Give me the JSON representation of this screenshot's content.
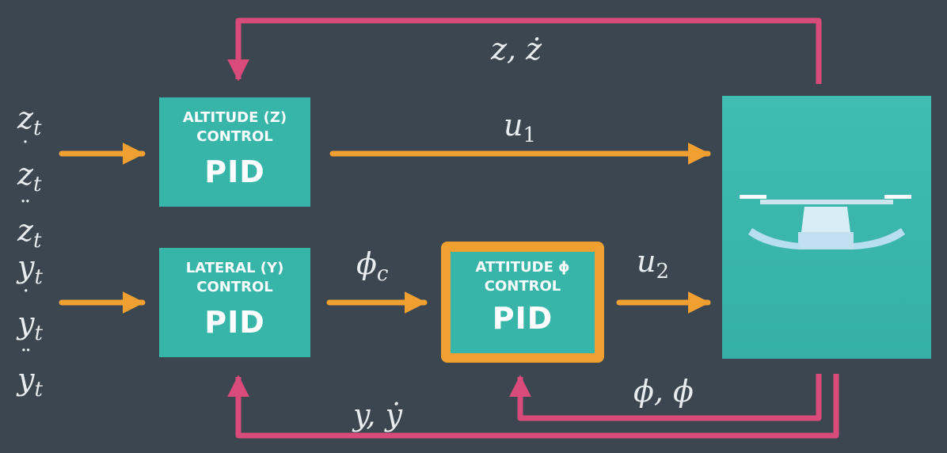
{
  "blocks": {
    "altitude": {
      "title": "ALTITUDE (Z)\nCONTROL",
      "pid": "PID"
    },
    "lateral": {
      "title": "LATERAL (Y)\nCONTROL",
      "pid": "PID"
    },
    "attitude": {
      "title": "ATTITUDE ϕ\nCONTROL",
      "pid": "PID"
    }
  },
  "signals": {
    "z_inputs": [
      "z",
      "z",
      "z"
    ],
    "y_inputs": [
      "y",
      "y",
      "y"
    ],
    "input_subscript": "t",
    "u1": "u",
    "u1_sub": "1",
    "u2": "u",
    "u2_sub": "2",
    "phi_c": "ϕ",
    "phi_c_sub": "c",
    "z_feedback": "z, ż",
    "y_feedback": "y, ẏ",
    "phi_feedback": "ϕ, ϕ"
  },
  "colors": {
    "background": "#3b4650",
    "block": "#36b5a8",
    "forward_arrow": "#f0a030",
    "feedback_arrow": "#d94b7a",
    "attitude_border": "#f0a030"
  },
  "icons": [
    "quadrotor-icon"
  ]
}
